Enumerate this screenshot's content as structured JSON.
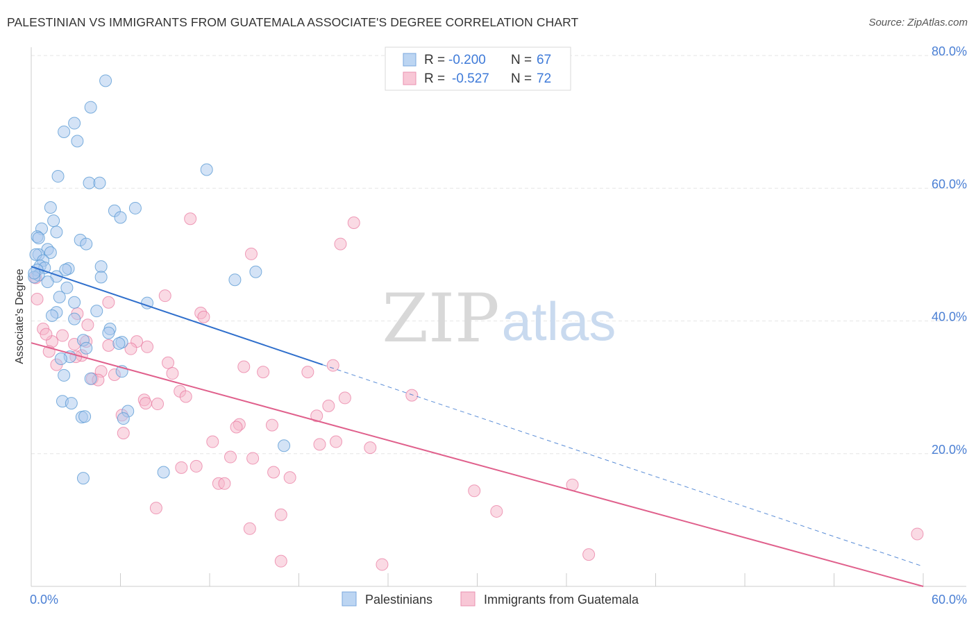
{
  "title": "PALESTINIAN VS IMMIGRANTS FROM GUATEMALA ASSOCIATE'S DEGREE CORRELATION CHART",
  "source": "Source: ZipAtlas.com",
  "watermark": {
    "zip": "ZIP",
    "atlas": "atlas"
  },
  "colors": {
    "blue": "#5b9bd5",
    "blue_fill": "#a9c8ee",
    "blue_line": "#2f6fcc",
    "pink": "#e8759c",
    "pink_fill": "#f5b6ca",
    "pink_line": "#e0608c",
    "axis_text": "#4a7fd4"
  },
  "legend": {
    "rows": [
      {
        "r_label": "R =",
        "r_value": "-0.200",
        "n_label": "N =",
        "n_value": "67"
      },
      {
        "r_label": "R =",
        "r_value": "-0.527",
        "n_label": "N =",
        "n_value": "72"
      }
    ]
  },
  "bottom_legend": {
    "series1": "Palestinians",
    "series2": "Immigrants from Guatemala"
  },
  "chart_data": {
    "type": "scatter",
    "title": "PALESTINIAN VS IMMIGRANTS FROM GUATEMALA ASSOCIATE'S DEGREE CORRELATION CHART",
    "xlabel": "",
    "ylabel": "Associate's Degree",
    "xlim": [
      0,
      60
    ],
    "ylim": [
      0,
      80
    ],
    "x_tick_labels": [
      "0.0%",
      "60.0%"
    ],
    "y_tick_labels": [
      "20.0%",
      "40.0%",
      "60.0%",
      "80.0%"
    ],
    "y_ticks": [
      20,
      40,
      60,
      80
    ],
    "x_minor_ticks": [
      0,
      6,
      12,
      18,
      24,
      30,
      36,
      42,
      48,
      54,
      60
    ],
    "grid": true,
    "series": [
      {
        "name": "Palestinians",
        "r": -0.2,
        "n": 67,
        "trend": {
          "x0": 0,
          "y0": 48.2,
          "x1": 19.6,
          "y1": 33.4,
          "dash_x1": 60,
          "dash_y1": 3.0
        },
        "points": [
          [
            5.0,
            76.2
          ],
          [
            4.0,
            72.2
          ],
          [
            2.9,
            69.8
          ],
          [
            2.2,
            68.5
          ],
          [
            3.1,
            67.1
          ],
          [
            11.8,
            62.8
          ],
          [
            1.8,
            61.8
          ],
          [
            3.9,
            60.8
          ],
          [
            4.6,
            60.8
          ],
          [
            1.3,
            57.1
          ],
          [
            7.0,
            57.0
          ],
          [
            5.6,
            56.6
          ],
          [
            6.0,
            55.6
          ],
          [
            1.5,
            55.1
          ],
          [
            0.7,
            53.9
          ],
          [
            1.7,
            53.4
          ],
          [
            0.4,
            52.7
          ],
          [
            0.5,
            52.5
          ],
          [
            3.3,
            52.2
          ],
          [
            3.7,
            51.6
          ],
          [
            1.1,
            50.8
          ],
          [
            1.3,
            50.3
          ],
          [
            0.5,
            50.0
          ],
          [
            0.3,
            50.0
          ],
          [
            0.8,
            49.1
          ],
          [
            0.6,
            48.3
          ],
          [
            0.9,
            48.0
          ],
          [
            0.4,
            47.7
          ],
          [
            4.7,
            48.2
          ],
          [
            2.5,
            47.9
          ],
          [
            2.3,
            47.7
          ],
          [
            15.1,
            47.4
          ],
          [
            0.5,
            46.9
          ],
          [
            1.7,
            46.7
          ],
          [
            0.2,
            46.6
          ],
          [
            4.7,
            46.6
          ],
          [
            13.7,
            46.2
          ],
          [
            1.1,
            45.9
          ],
          [
            2.4,
            45.0
          ],
          [
            1.9,
            43.6
          ],
          [
            7.8,
            42.7
          ],
          [
            2.9,
            42.8
          ],
          [
            1.7,
            41.3
          ],
          [
            4.4,
            41.5
          ],
          [
            1.4,
            40.8
          ],
          [
            2.9,
            40.3
          ],
          [
            5.3,
            38.8
          ],
          [
            5.2,
            38.2
          ],
          [
            3.5,
            37.1
          ],
          [
            6.1,
            36.8
          ],
          [
            5.9,
            36.6
          ],
          [
            3.7,
            35.9
          ],
          [
            2.6,
            34.6
          ],
          [
            2.0,
            34.3
          ],
          [
            6.1,
            32.4
          ],
          [
            2.2,
            31.8
          ],
          [
            4.0,
            31.3
          ],
          [
            2.1,
            27.9
          ],
          [
            2.7,
            27.6
          ],
          [
            6.5,
            26.4
          ],
          [
            3.4,
            25.5
          ],
          [
            3.6,
            25.6
          ],
          [
            6.2,
            25.3
          ],
          [
            17.0,
            21.2
          ],
          [
            3.5,
            16.3
          ],
          [
            8.9,
            17.2
          ],
          [
            0.2,
            47.2
          ]
        ]
      },
      {
        "name": "Immigrants from Guatemala",
        "r": -0.527,
        "n": 72,
        "trend": {
          "x0": 0,
          "y0": 36.7,
          "x1": 60,
          "y1": 0.0
        },
        "points": [
          [
            10.7,
            55.4
          ],
          [
            21.7,
            54.8
          ],
          [
            20.8,
            51.6
          ],
          [
            14.8,
            50.1
          ],
          [
            0.3,
            46.5
          ],
          [
            0.4,
            43.3
          ],
          [
            9.0,
            43.8
          ],
          [
            5.2,
            42.8
          ],
          [
            11.4,
            41.2
          ],
          [
            11.6,
            40.6
          ],
          [
            3.1,
            41.1
          ],
          [
            3.8,
            39.4
          ],
          [
            0.8,
            38.8
          ],
          [
            2.1,
            37.8
          ],
          [
            1.4,
            36.9
          ],
          [
            2.9,
            36.5
          ],
          [
            5.2,
            36.3
          ],
          [
            7.1,
            36.9
          ],
          [
            7.8,
            36.1
          ],
          [
            3.7,
            36.9
          ],
          [
            6.7,
            35.8
          ],
          [
            1.2,
            35.4
          ],
          [
            3.4,
            34.8
          ],
          [
            3.0,
            34.6
          ],
          [
            9.2,
            33.7
          ],
          [
            1.7,
            33.4
          ],
          [
            14.3,
            33.1
          ],
          [
            20.3,
            33.3
          ],
          [
            15.6,
            32.3
          ],
          [
            18.6,
            32.3
          ],
          [
            4.7,
            32.4
          ],
          [
            9.5,
            32.1
          ],
          [
            5.6,
            31.9
          ],
          [
            4.1,
            31.3
          ],
          [
            4.5,
            31.1
          ],
          [
            10.0,
            29.4
          ],
          [
            10.4,
            28.6
          ],
          [
            25.6,
            28.8
          ],
          [
            21.1,
            28.4
          ],
          [
            7.6,
            28.1
          ],
          [
            7.7,
            27.6
          ],
          [
            8.5,
            27.5
          ],
          [
            20.0,
            27.2
          ],
          [
            6.1,
            25.8
          ],
          [
            19.2,
            25.7
          ],
          [
            14.0,
            24.4
          ],
          [
            16.2,
            24.3
          ],
          [
            13.8,
            24.0
          ],
          [
            6.2,
            23.1
          ],
          [
            12.2,
            21.8
          ],
          [
            19.4,
            21.4
          ],
          [
            20.5,
            21.8
          ],
          [
            22.8,
            20.9
          ],
          [
            13.4,
            19.5
          ],
          [
            14.9,
            19.3
          ],
          [
            11.1,
            18.1
          ],
          [
            10.1,
            17.9
          ],
          [
            16.3,
            17.2
          ],
          [
            17.4,
            16.4
          ],
          [
            12.6,
            15.5
          ],
          [
            13.0,
            15.5
          ],
          [
            29.8,
            14.4
          ],
          [
            36.4,
            15.3
          ],
          [
            8.4,
            11.8
          ],
          [
            31.3,
            11.3
          ],
          [
            16.8,
            10.8
          ],
          [
            14.7,
            8.7
          ],
          [
            59.6,
            7.9
          ],
          [
            37.5,
            4.8
          ],
          [
            16.8,
            3.8
          ],
          [
            23.6,
            3.3
          ],
          [
            1.0,
            38.0
          ]
        ]
      }
    ]
  }
}
